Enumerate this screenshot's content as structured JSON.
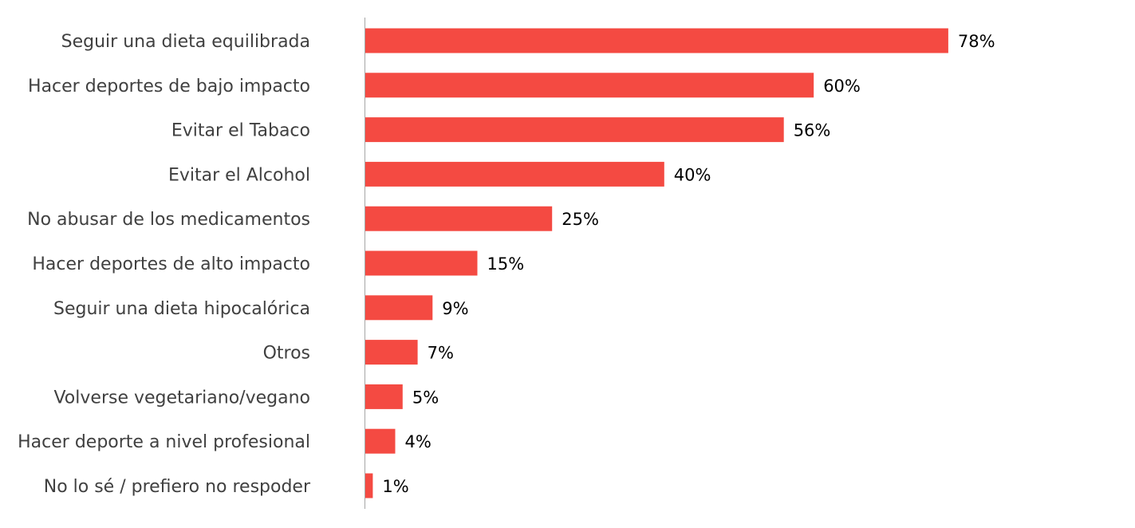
{
  "chart_data": {
    "type": "bar",
    "orientation": "horizontal",
    "title": "",
    "xlabel": "",
    "ylabel": "",
    "xlim": [
      0,
      100
    ],
    "grid": false,
    "legend": "none",
    "bar_color": "#f44a42",
    "value_suffix": "%",
    "categories": [
      "Seguir una dieta equilibrada",
      "Hacer deportes de bajo impacto",
      "Evitar el Tabaco",
      "Evitar el Alcohol",
      "No abusar de los medicamentos",
      "Hacer deportes de alto impacto",
      "Seguir una dieta hipocalórica",
      "Otros",
      "Volverse vegetariano/vegano",
      "Hacer deporte a nivel profesional",
      "No lo sé / prefiero no respoder"
    ],
    "values": [
      78,
      60,
      56,
      40,
      25,
      15,
      9,
      7,
      5,
      4,
      1
    ],
    "value_labels": [
      "78%",
      "60%",
      "56%",
      "40%",
      "25%",
      "15%",
      "9%",
      "7%",
      "5%",
      "4%",
      "1%"
    ]
  }
}
